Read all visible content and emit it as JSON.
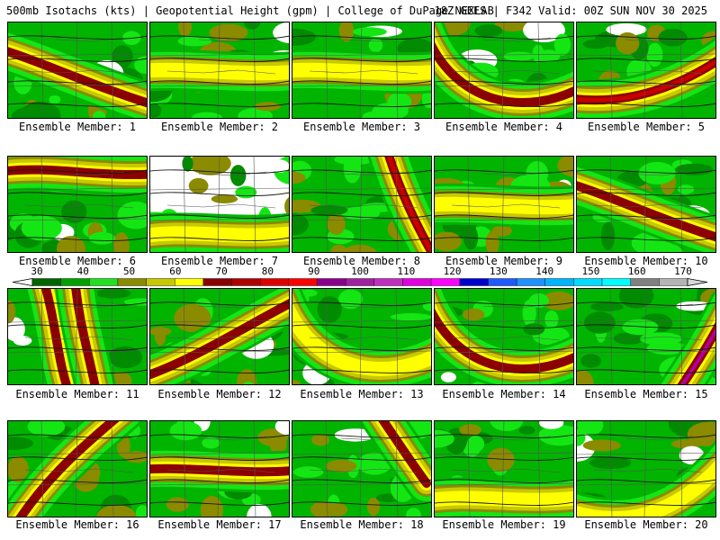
{
  "header": {
    "left": "500mb Isotachs (kts) | Geopotential Height (gpm) | College of DuPage NEXLAB",
    "right": "18Z GEFS | F342 Valid: 00Z SUN NOV 30 2025"
  },
  "panels": [
    {
      "label": "Ensemble Member: 1",
      "wind_max_kt": 80,
      "jet": "NW-SE"
    },
    {
      "label": "Ensemble Member: 2",
      "wind_max_kt": 60,
      "jet": "zonal"
    },
    {
      "label": "Ensemble Member: 3",
      "wind_max_kt": 60,
      "jet": "zonal"
    },
    {
      "label": "Ensemble Member: 4",
      "wind_max_kt": 80,
      "jet": "trough"
    },
    {
      "label": "Ensemble Member: 5",
      "wind_max_kt": 100,
      "jet": "SW-flow"
    },
    {
      "label": "Ensemble Member: 6",
      "wind_max_kt": 80,
      "jet": "north-zonal"
    },
    {
      "label": "Ensemble Member: 7",
      "wind_max_kt": 60,
      "jet": "weak"
    },
    {
      "label": "Ensemble Member: 8",
      "wind_max_kt": 100,
      "jet": "N-S-east"
    },
    {
      "label": "Ensemble Member: 9",
      "wind_max_kt": 60,
      "jet": "zonal"
    },
    {
      "label": "Ensemble Member: 10",
      "wind_max_kt": 80,
      "jet": "NW-SE"
    },
    {
      "label": "Ensemble Member: 11",
      "wind_max_kt": 80,
      "jet": "N-S-west"
    },
    {
      "label": "Ensemble Member: 12",
      "wind_max_kt": 80,
      "jet": "SW-NE"
    },
    {
      "label": "Ensemble Member: 13",
      "wind_max_kt": 60,
      "jet": "trough"
    },
    {
      "label": "Ensemble Member: 14",
      "wind_max_kt": 80,
      "jet": "trough"
    },
    {
      "label": "Ensemble Member: 15",
      "wind_max_kt": 120,
      "jet": "SE-corner"
    },
    {
      "label": "Ensemble Member: 16",
      "wind_max_kt": 80,
      "jet": "SW-NE-west"
    },
    {
      "label": "Ensemble Member: 17",
      "wind_max_kt": 80,
      "jet": "zonal"
    },
    {
      "label": "Ensemble Member: 18",
      "wind_max_kt": 80,
      "jet": "NW-SE-east"
    },
    {
      "label": "Ensemble Member: 19",
      "wind_max_kt": 60,
      "jet": "weak"
    },
    {
      "label": "Ensemble Member: 20",
      "wind_max_kt": 70,
      "jet": "south-curve"
    }
  ],
  "colorbar": {
    "ticks": [
      "30",
      "40",
      "50",
      "60",
      "70",
      "80",
      "90",
      "100",
      "110",
      "120",
      "130",
      "140",
      "150",
      "160",
      "170"
    ],
    "colors": [
      "#006400",
      "#00a000",
      "#20e020",
      "#8b8b00",
      "#c8c800",
      "#ffff00",
      "#8b0000",
      "#b00000",
      "#dd0000",
      "#ff0000",
      "#8b008b",
      "#a020a0",
      "#c030c0",
      "#e000e0",
      "#ff00ff",
      "#0000cd",
      "#1e5aff",
      "#1e90ff",
      "#00b4ff",
      "#00dcff",
      "#00ffff",
      "#808080",
      "#b4b4b4"
    ]
  }
}
